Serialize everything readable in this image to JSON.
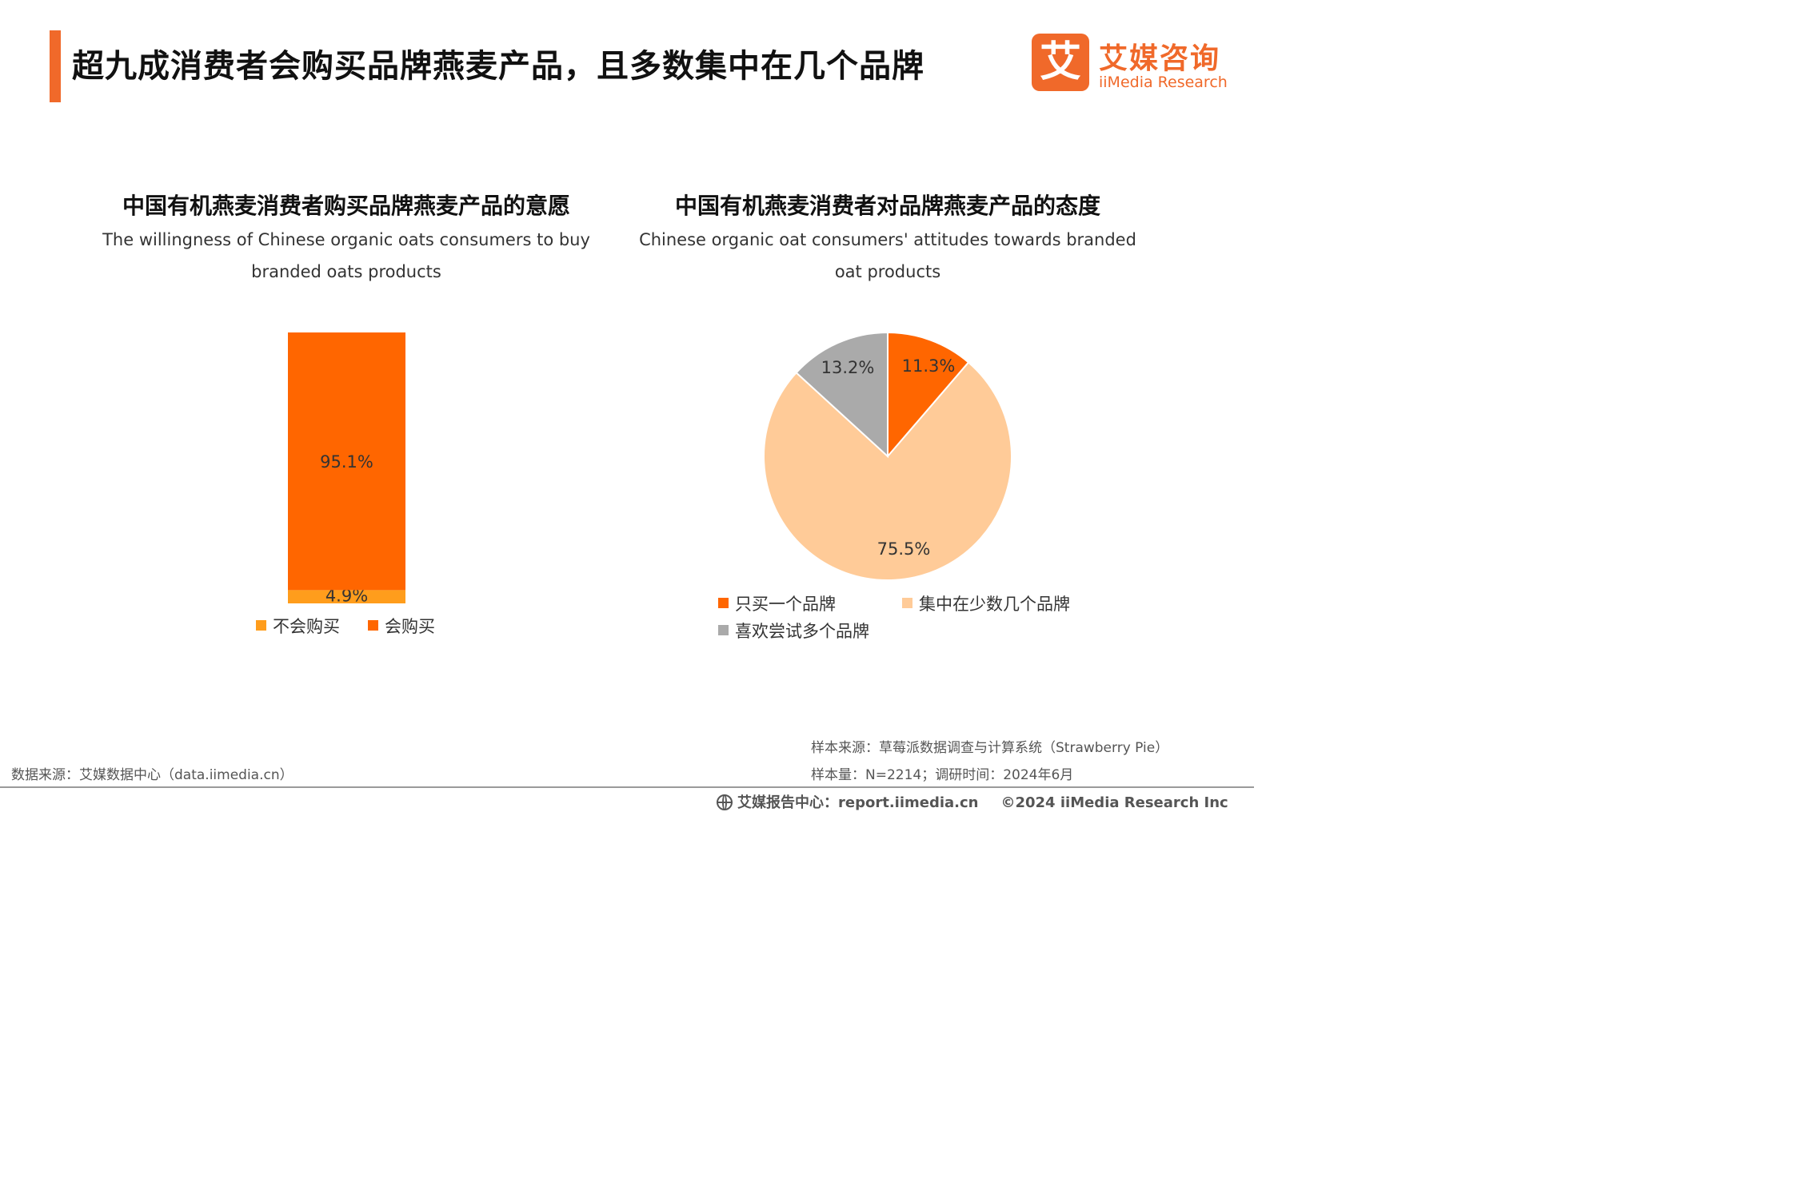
{
  "page": {
    "title": "超九成消费者会购买品牌燕麦产品，且多数集中在几个品牌"
  },
  "logo": {
    "mark": "艾",
    "name_cn": "艾媒咨询",
    "name_en": "iiMedia Research"
  },
  "colors": {
    "accent": "#f0692a",
    "buy": "#ff6600",
    "not_buy": "#ff9d1c",
    "one_brand": "#ff6600",
    "few_brands": "#ffcb98",
    "many_brands": "#aaaaaa"
  },
  "chart_data": [
    {
      "type": "bar",
      "stacked": true,
      "title": "中国有机燕麦消费者购买品牌燕麦产品的意愿",
      "subtitle": "The willingness of Chinese organic oats consumers to buy branded oats products",
      "categories": [
        ""
      ],
      "series": [
        {
          "name": "不会购买",
          "values": [
            4.9
          ],
          "label": "4.9%"
        },
        {
          "name": "会购买",
          "values": [
            95.1
          ],
          "label": "95.1%"
        }
      ],
      "legend": "bottom"
    },
    {
      "type": "pie",
      "title": "中国有机燕麦消费者对品牌燕麦产品的态度",
      "subtitle": "Chinese organic oat consumers' attitudes towards branded oat products",
      "slices": [
        {
          "name": "只买一个品牌",
          "value": 11.3,
          "label": "11.3%"
        },
        {
          "name": "集中在少数几个品牌",
          "value": 75.5,
          "label": "75.5%"
        },
        {
          "name": "喜欢尝试多个品牌",
          "value": 13.2,
          "label": "13.2%"
        }
      ],
      "legend": "bottom"
    }
  ],
  "footer": {
    "data_source": "数据来源：艾媒数据中心（data.iimedia.cn）",
    "sample_source": "样本来源：草莓派数据调查与计算系统（Strawberry Pie）",
    "sample_size": "样本量：N=2214；调研时间：2024年6月",
    "report_center": "艾媒报告中心：report.iimedia.cn",
    "copyright": "©2024  iiMedia Research Inc"
  }
}
